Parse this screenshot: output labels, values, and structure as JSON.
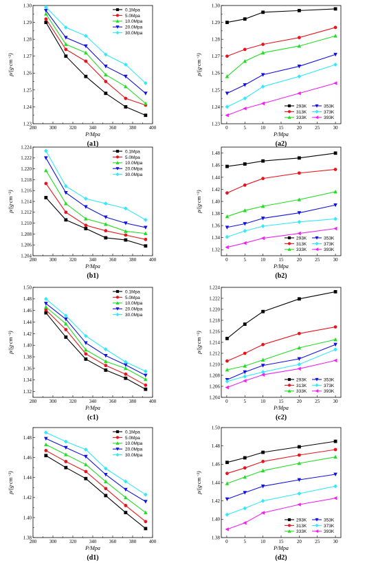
{
  "colors": {
    "black": "#000000",
    "red": "#e8141c",
    "green": "#22dd22",
    "blue": "#1010e0",
    "cyan": "#33e8f8",
    "magenta": "#ee22ee"
  },
  "chart_data": [
    {
      "id": "a1",
      "panel_label": "(a1)",
      "type": "line",
      "xlabel": "P/Mpa",
      "ylabel": "ρ/(g·cm⁻³)",
      "xlim": [
        280,
        400
      ],
      "ylim": [
        1.23,
        1.3
      ],
      "xticks": [
        280,
        290,
        300,
        310,
        320,
        330,
        340,
        350,
        360,
        370,
        380,
        390,
        400
      ],
      "xticklabels": [
        "280",
        "",
        "300",
        "",
        "320",
        "",
        "340",
        "",
        "360",
        "",
        "380",
        "",
        "400"
      ],
      "yticks": [
        1.23,
        1.235,
        1.24,
        1.245,
        1.25,
        1.255,
        1.26,
        1.265,
        1.27,
        1.275,
        1.28,
        1.285,
        1.29,
        1.295,
        1.3
      ],
      "yticklabels": [
        "1.23",
        "",
        "1.24",
        "",
        "1.25",
        "",
        "1.26",
        "",
        "1.27",
        "",
        "1.28",
        "",
        "1.29",
        "",
        "1.30"
      ],
      "legend_position": "top-right",
      "x": [
        293,
        313,
        333,
        353,
        373,
        393
      ],
      "series": [
        {
          "name": "0.1Mpa",
          "color": "black",
          "marker": "square",
          "values": [
            1.29,
            1.27,
            1.258,
            1.248,
            1.24,
            1.235
          ]
        },
        {
          "name": "5.0Mpa",
          "color": "red",
          "marker": "circle",
          "values": [
            1.292,
            1.274,
            1.267,
            1.255,
            1.245,
            1.241
          ]
        },
        {
          "name": "10.0Mpa",
          "color": "green",
          "marker": "triangle-up",
          "values": [
            1.295,
            1.277,
            1.272,
            1.259,
            1.252,
            1.242
          ]
        },
        {
          "name": "20.0Mpa",
          "color": "blue",
          "marker": "triangle-down",
          "values": [
            1.297,
            1.281,
            1.276,
            1.264,
            1.258,
            1.248
          ]
        },
        {
          "name": "30.0Mpa",
          "color": "cyan",
          "marker": "diamond",
          "values": [
            1.299,
            1.287,
            1.282,
            1.271,
            1.265,
            1.254
          ]
        }
      ]
    },
    {
      "id": "a2",
      "panel_label": "(a2)",
      "type": "line",
      "xlabel": "P/Mpa",
      "ylabel": "ρ/(g·cm⁻³)",
      "xlim": [
        -1.5,
        31.5
      ],
      "ylim": [
        1.23,
        1.3
      ],
      "xticks": [
        0,
        5,
        10,
        15,
        20,
        25,
        30
      ],
      "xticklabels": [
        "0",
        "5",
        "10",
        "15",
        "20",
        "25",
        "30"
      ],
      "yticks": [
        1.23,
        1.235,
        1.24,
        1.245,
        1.25,
        1.255,
        1.26,
        1.265,
        1.27,
        1.275,
        1.28,
        1.285,
        1.29,
        1.295,
        1.3
      ],
      "yticklabels": [
        "1.23",
        "",
        "1.24",
        "",
        "1.25",
        "",
        "1.26",
        "",
        "1.27",
        "",
        "1.28",
        "",
        "1.29",
        "",
        "1.30"
      ],
      "legend_position": "bottom-right",
      "x": [
        0.1,
        5,
        10,
        20,
        30
      ],
      "series": [
        {
          "name": "293K",
          "color": "black",
          "marker": "square",
          "values": [
            1.29,
            1.292,
            1.296,
            1.297,
            1.298
          ]
        },
        {
          "name": "353K",
          "color": "blue",
          "marker": "triangle-down",
          "values": [
            1.248,
            1.253,
            1.259,
            1.264,
            1.271
          ]
        },
        {
          "name": "313K",
          "color": "red",
          "marker": "circle",
          "values": [
            1.27,
            1.274,
            1.277,
            1.281,
            1.287
          ]
        },
        {
          "name": "373K",
          "color": "cyan",
          "marker": "diamond",
          "values": [
            1.24,
            1.245,
            1.252,
            1.258,
            1.265
          ]
        },
        {
          "name": "333K",
          "color": "green",
          "marker": "triangle-up",
          "values": [
            1.258,
            1.267,
            1.272,
            1.276,
            1.282
          ]
        },
        {
          "name": "393K",
          "color": "magenta",
          "marker": "triangle-left",
          "values": [
            1.235,
            1.239,
            1.242,
            1.248,
            1.254
          ]
        }
      ]
    },
    {
      "id": "b1",
      "panel_label": "(b1)",
      "type": "line",
      "xlabel": "P/Mpa",
      "ylabel": "ρ/(g·cm⁻³)",
      "xlim": [
        280,
        400
      ],
      "ylim": [
        1.204,
        1.224
      ],
      "xticks": [
        280,
        290,
        300,
        310,
        320,
        330,
        340,
        350,
        360,
        370,
        380,
        390,
        400
      ],
      "xticklabels": [
        "280",
        "",
        "300",
        "",
        "320",
        "",
        "340",
        "",
        "360",
        "",
        "380",
        "",
        "400"
      ],
      "yticks": [
        1.204,
        1.206,
        1.208,
        1.21,
        1.212,
        1.214,
        1.216,
        1.218,
        1.22,
        1.222,
        1.224
      ],
      "yticklabels": [
        "1.204",
        "1.206",
        "1.208",
        "1.210",
        "1.212",
        "1.214",
        "1.216",
        "1.218",
        "1.220",
        "1.222",
        "1.224"
      ],
      "legend_position": "top-right",
      "x": [
        293,
        313,
        333,
        353,
        373,
        393
      ],
      "series": [
        {
          "name": "0.1Mpa",
          "color": "black",
          "marker": "square",
          "values": [
            1.2147,
            1.2106,
            1.209,
            1.2073,
            1.2069,
            1.2058
          ]
        },
        {
          "name": "5.0Mpa",
          "color": "red",
          "marker": "circle",
          "values": [
            1.2173,
            1.212,
            1.2096,
            1.2086,
            1.2078,
            1.207
          ]
        },
        {
          "name": "10.0Mpa",
          "color": "green",
          "marker": "triangle-up",
          "values": [
            1.2197,
            1.2136,
            1.2108,
            1.2098,
            1.2085,
            1.2081
          ]
        },
        {
          "name": "20.0Mpa",
          "color": "blue",
          "marker": "triangle-down",
          "values": [
            1.222,
            1.2156,
            1.213,
            1.2111,
            1.21,
            1.2092
          ]
        },
        {
          "name": "30.0Mpa",
          "color": "cyan",
          "marker": "diamond",
          "values": [
            1.2233,
            1.2168,
            1.2145,
            1.2136,
            1.2127,
            1.2106
          ]
        }
      ]
    },
    {
      "id": "b2",
      "panel_label": "(b2)",
      "type": "line",
      "xlabel": "P/Mpa",
      "ylabel": "ρ/(g·cm⁻³)",
      "xlim": [
        -1.5,
        31.5
      ],
      "ylim": [
        1.31,
        1.49
      ],
      "xticks": [
        0,
        5,
        10,
        15,
        20,
        25,
        30
      ],
      "xticklabels": [
        "0",
        "5",
        "10",
        "15",
        "20",
        "25",
        "30"
      ],
      "yticks": [
        1.32,
        1.34,
        1.36,
        1.38,
        1.4,
        1.42,
        1.44,
        1.46,
        1.48
      ],
      "yticklabels": [
        "1.32",
        "1.34",
        "1.36",
        "1.38",
        "1.40",
        "1.42",
        "1.44",
        "1.46",
        "1.48"
      ],
      "legend_position": "bottom-right",
      "x": [
        0.1,
        5,
        10,
        20,
        30
      ],
      "series": [
        {
          "name": "293K",
          "color": "black",
          "marker": "square",
          "values": [
            1.458,
            1.462,
            1.467,
            1.472,
            1.48
          ]
        },
        {
          "name": "353K",
          "color": "blue",
          "marker": "triangle-down",
          "values": [
            1.357,
            1.363,
            1.372,
            1.381,
            1.394
          ]
        },
        {
          "name": "313K",
          "color": "red",
          "marker": "circle",
          "values": [
            1.414,
            1.427,
            1.438,
            1.447,
            1.453
          ]
        },
        {
          "name": "373K",
          "color": "cyan",
          "marker": "diamond",
          "values": [
            1.341,
            1.351,
            1.359,
            1.366,
            1.371
          ]
        },
        {
          "name": "333K",
          "color": "green",
          "marker": "triangle-up",
          "values": [
            1.375,
            1.385,
            1.392,
            1.403,
            1.416
          ]
        },
        {
          "name": "393K",
          "color": "magenta",
          "marker": "triangle-left",
          "values": [
            1.324,
            1.331,
            1.339,
            1.347,
            1.355
          ]
        }
      ]
    },
    {
      "id": "c1",
      "panel_label": "(c1)",
      "type": "line",
      "xlabel": "P/Mpa",
      "ylabel": "ρ/(g·cm⁻³)",
      "xlim": [
        280,
        400
      ],
      "ylim": [
        1.31,
        1.5
      ],
      "xticks": [
        280,
        290,
        300,
        310,
        320,
        330,
        340,
        350,
        360,
        370,
        380,
        390,
        400
      ],
      "xticklabels": [
        "280",
        "",
        "300",
        "",
        "320",
        "",
        "340",
        "",
        "360",
        "",
        "380",
        "",
        "400"
      ],
      "yticks": [
        1.32,
        1.34,
        1.36,
        1.38,
        1.4,
        1.42,
        1.44,
        1.46,
        1.48,
        1.5
      ],
      "yticklabels": [
        "1.32",
        "1.34",
        "1.36",
        "1.38",
        "1.40",
        "1.42",
        "1.44",
        "1.46",
        "1.48",
        "1.50"
      ],
      "legend_position": "top-right",
      "x": [
        293,
        313,
        333,
        353,
        373,
        393
      ],
      "series": [
        {
          "name": "0.1Mpa",
          "color": "black",
          "marker": "square",
          "values": [
            1.456,
            1.414,
            1.376,
            1.357,
            1.343,
            1.324
          ]
        },
        {
          "name": "5.0Mpa",
          "color": "red",
          "marker": "circle",
          "values": [
            1.461,
            1.427,
            1.385,
            1.365,
            1.35,
            1.331
          ]
        },
        {
          "name": "10.0Mpa",
          "color": "green",
          "marker": "triangle-up",
          "values": [
            1.466,
            1.437,
            1.392,
            1.372,
            1.36,
            1.341
          ]
        },
        {
          "name": "20.0Mpa",
          "color": "blue",
          "marker": "triangle-down",
          "values": [
            1.472,
            1.445,
            1.404,
            1.382,
            1.366,
            1.348
          ]
        },
        {
          "name": "30.0Mpa",
          "color": "cyan",
          "marker": "diamond",
          "values": [
            1.48,
            1.451,
            1.416,
            1.393,
            1.371,
            1.355
          ]
        }
      ]
    },
    {
      "id": "c2",
      "panel_label": "(c2)",
      "type": "line",
      "xlabel": "P/Mpa",
      "ylabel": "ρ/(g·cm⁻³)",
      "xlim": [
        -1.5,
        31.5
      ],
      "ylim": [
        1.204,
        1.224
      ],
      "xticks": [
        0,
        5,
        10,
        15,
        20,
        25,
        30
      ],
      "xticklabels": [
        "0",
        "5",
        "10",
        "15",
        "20",
        "25",
        "30"
      ],
      "yticks": [
        1.204,
        1.206,
        1.208,
        1.21,
        1.212,
        1.214,
        1.216,
        1.218,
        1.22,
        1.222,
        1.224
      ],
      "yticklabels": [
        "1.204",
        "1.206",
        "1.208",
        "1.210",
        "1.212",
        "1.214",
        "1.216",
        "1.218",
        "1.220",
        "1.222",
        "1.224"
      ],
      "legend_position": "bottom-right",
      "x": [
        0.1,
        5,
        10,
        20,
        30
      ],
      "series": [
        {
          "name": "293K",
          "color": "black",
          "marker": "square",
          "values": [
            1.2147,
            1.2173,
            1.2196,
            1.2219,
            1.2232
          ]
        },
        {
          "name": "353K",
          "color": "blue",
          "marker": "triangle-down",
          "values": [
            1.2072,
            1.2086,
            1.2098,
            1.211,
            1.2136
          ]
        },
        {
          "name": "313K",
          "color": "red",
          "marker": "circle",
          "values": [
            1.2106,
            1.212,
            1.2136,
            1.2156,
            1.2168
          ]
        },
        {
          "name": "373K",
          "color": "cyan",
          "marker": "diamond",
          "values": [
            1.2069,
            1.2078,
            1.2086,
            1.21,
            1.2127
          ]
        },
        {
          "name": "333K",
          "color": "green",
          "marker": "triangle-up",
          "values": [
            1.209,
            1.2097,
            1.2108,
            1.213,
            1.2145
          ]
        },
        {
          "name": "393K",
          "color": "magenta",
          "marker": "triangle-left",
          "values": [
            1.2058,
            1.207,
            1.2081,
            1.2092,
            1.2107
          ]
        }
      ]
    },
    {
      "id": "d1",
      "panel_label": "(d1)",
      "type": "line",
      "xlabel": "P/Mpa",
      "ylabel": "ρ/(g·cm⁻³)",
      "xlim": [
        280,
        400
      ],
      "ylim": [
        1.38,
        1.49
      ],
      "xticks": [
        280,
        290,
        300,
        310,
        320,
        330,
        340,
        350,
        360,
        370,
        380,
        390,
        400
      ],
      "xticklabels": [
        "280",
        "",
        "300",
        "",
        "320",
        "",
        "340",
        "",
        "360",
        "",
        "380",
        "",
        "400"
      ],
      "yticks": [
        1.38,
        1.39,
        1.4,
        1.41,
        1.42,
        1.43,
        1.44,
        1.45,
        1.46,
        1.47,
        1.48,
        1.49
      ],
      "yticklabels": [
        "1.38",
        "",
        "1.40",
        "",
        "1.42",
        "",
        "1.44",
        "",
        "1.46",
        "",
        "1.48",
        ""
      ],
      "legend_position": "top-right",
      "x": [
        293,
        313,
        333,
        353,
        373,
        393
      ],
      "series": [
        {
          "name": "0.1Mpa",
          "color": "black",
          "marker": "square",
          "values": [
            1.462,
            1.45,
            1.439,
            1.422,
            1.405,
            1.389
          ]
        },
        {
          "name": "5.0Mpa",
          "color": "red",
          "marker": "circle",
          "values": [
            1.467,
            1.456,
            1.446,
            1.429,
            1.412,
            1.396
          ]
        },
        {
          "name": "10.0Mpa",
          "color": "green",
          "marker": "triangle-up",
          "values": [
            1.473,
            1.463,
            1.453,
            1.436,
            1.42,
            1.405
          ]
        },
        {
          "name": "20.0Mpa",
          "color": "blue",
          "marker": "triangle-down",
          "values": [
            1.479,
            1.47,
            1.461,
            1.443,
            1.428,
            1.416
          ]
        },
        {
          "name": "30.0Mpa",
          "color": "cyan",
          "marker": "diamond",
          "values": [
            1.485,
            1.476,
            1.468,
            1.449,
            1.436,
            1.423
          ]
        }
      ]
    },
    {
      "id": "d2",
      "panel_label": "(d2)",
      "type": "line",
      "xlabel": "P/Mpa",
      "ylabel": "ρ/(g·cm⁻³)",
      "xlim": [
        -1.5,
        31.5
      ],
      "ylim": [
        1.38,
        1.5
      ],
      "xticks": [
        0,
        5,
        10,
        15,
        20,
        25,
        30
      ],
      "xticklabels": [
        "0",
        "5",
        "10",
        "15",
        "20",
        "25",
        "30"
      ],
      "yticks": [
        1.38,
        1.4,
        1.42,
        1.44,
        1.46,
        1.48,
        1.5
      ],
      "yticklabels": [
        "1.38",
        "1.40",
        "1.42",
        "1.44",
        "1.46",
        "1.48",
        "1.50"
      ],
      "legend_position": "bottom-right",
      "x": [
        0.1,
        5,
        10,
        20,
        30
      ],
      "series": [
        {
          "name": "293K",
          "color": "black",
          "marker": "square",
          "values": [
            1.462,
            1.467,
            1.473,
            1.479,
            1.485
          ]
        },
        {
          "name": "353K",
          "color": "blue",
          "marker": "triangle-down",
          "values": [
            1.422,
            1.429,
            1.436,
            1.443,
            1.449
          ]
        },
        {
          "name": "313K",
          "color": "red",
          "marker": "circle",
          "values": [
            1.45,
            1.456,
            1.463,
            1.47,
            1.476
          ]
        },
        {
          "name": "373K",
          "color": "cyan",
          "marker": "diamond",
          "values": [
            1.405,
            1.412,
            1.42,
            1.428,
            1.436
          ]
        },
        {
          "name": "333K",
          "color": "green",
          "marker": "triangle-up",
          "values": [
            1.439,
            1.446,
            1.453,
            1.461,
            1.468
          ]
        },
        {
          "name": "393K",
          "color": "magenta",
          "marker": "triangle-left",
          "values": [
            1.389,
            1.396,
            1.407,
            1.416,
            1.423
          ]
        }
      ]
    }
  ]
}
